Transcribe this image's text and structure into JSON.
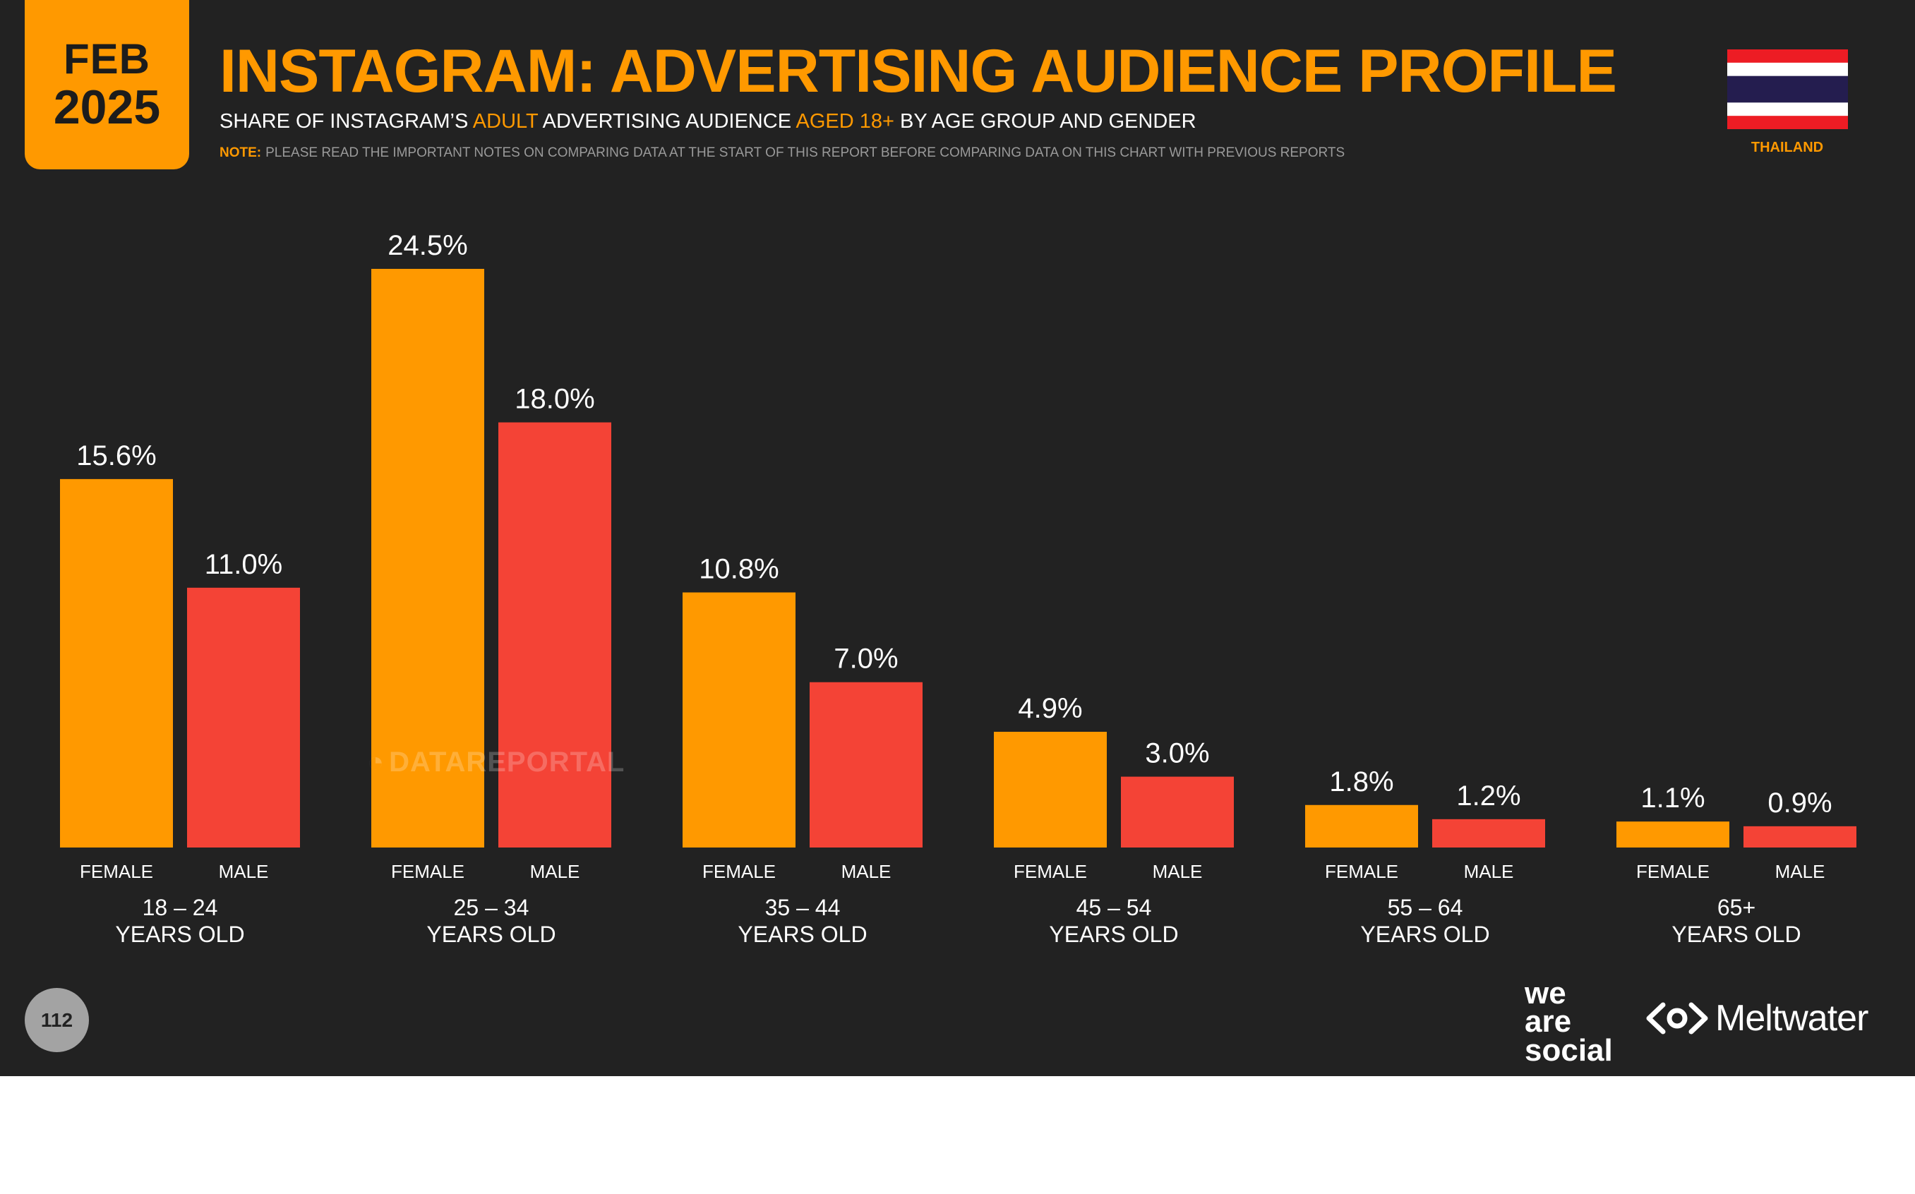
{
  "header": {
    "date_month": "FEB",
    "date_year": "2025",
    "title": "INSTAGRAM: ADVERTISING AUDIENCE PROFILE",
    "subtitle_1": "SHARE OF INSTAGRAM’S ",
    "subtitle_2": "ADULT",
    "subtitle_3": " ADVERTISING AUDIENCE ",
    "subtitle_4": "AGED 18+",
    "subtitle_5": " BY AGE GROUP AND GENDER",
    "note_label": "NOTE:",
    "note_text": "PLEASE READ THE IMPORTANT NOTES ON COMPARING DATA AT THE START OF THIS REPORT BEFORE COMPARING DATA ON THIS CHART WITH PREVIOUS REPORTS",
    "country": "THAILAND"
  },
  "colors": {
    "female": "#ff9900",
    "male": "#f44336",
    "background": "#222222",
    "accent": "#ff9900"
  },
  "chart_data": {
    "type": "bar",
    "title": "INSTAGRAM: ADVERTISING AUDIENCE PROFILE",
    "categories": [
      "18 – 24",
      "25 – 34",
      "35 – 44",
      "45 – 54",
      "55 – 64",
      "65+"
    ],
    "category_suffix": "YEARS OLD",
    "series": [
      {
        "name": "FEMALE",
        "values": [
          15.6,
          24.5,
          10.8,
          4.9,
          1.8,
          1.1
        ],
        "labels": [
          "15.6%",
          "24.5%",
          "10.8%",
          "4.9%",
          "1.8%",
          "1.1%"
        ]
      },
      {
        "name": "MALE",
        "values": [
          11.0,
          18.0,
          7.0,
          3.0,
          1.2,
          0.9
        ],
        "labels": [
          "11.0%",
          "18.0%",
          "7.0%",
          "3.0%",
          "1.2%",
          "0.9%"
        ]
      }
    ],
    "ylim": [
      0,
      24.5
    ],
    "grid": false
  },
  "watermark": "DATAREPORTAL",
  "footer": {
    "page_number": "112",
    "logo_was": [
      "we",
      "are",
      "social"
    ],
    "logo_meltwater": "Meltwater"
  }
}
